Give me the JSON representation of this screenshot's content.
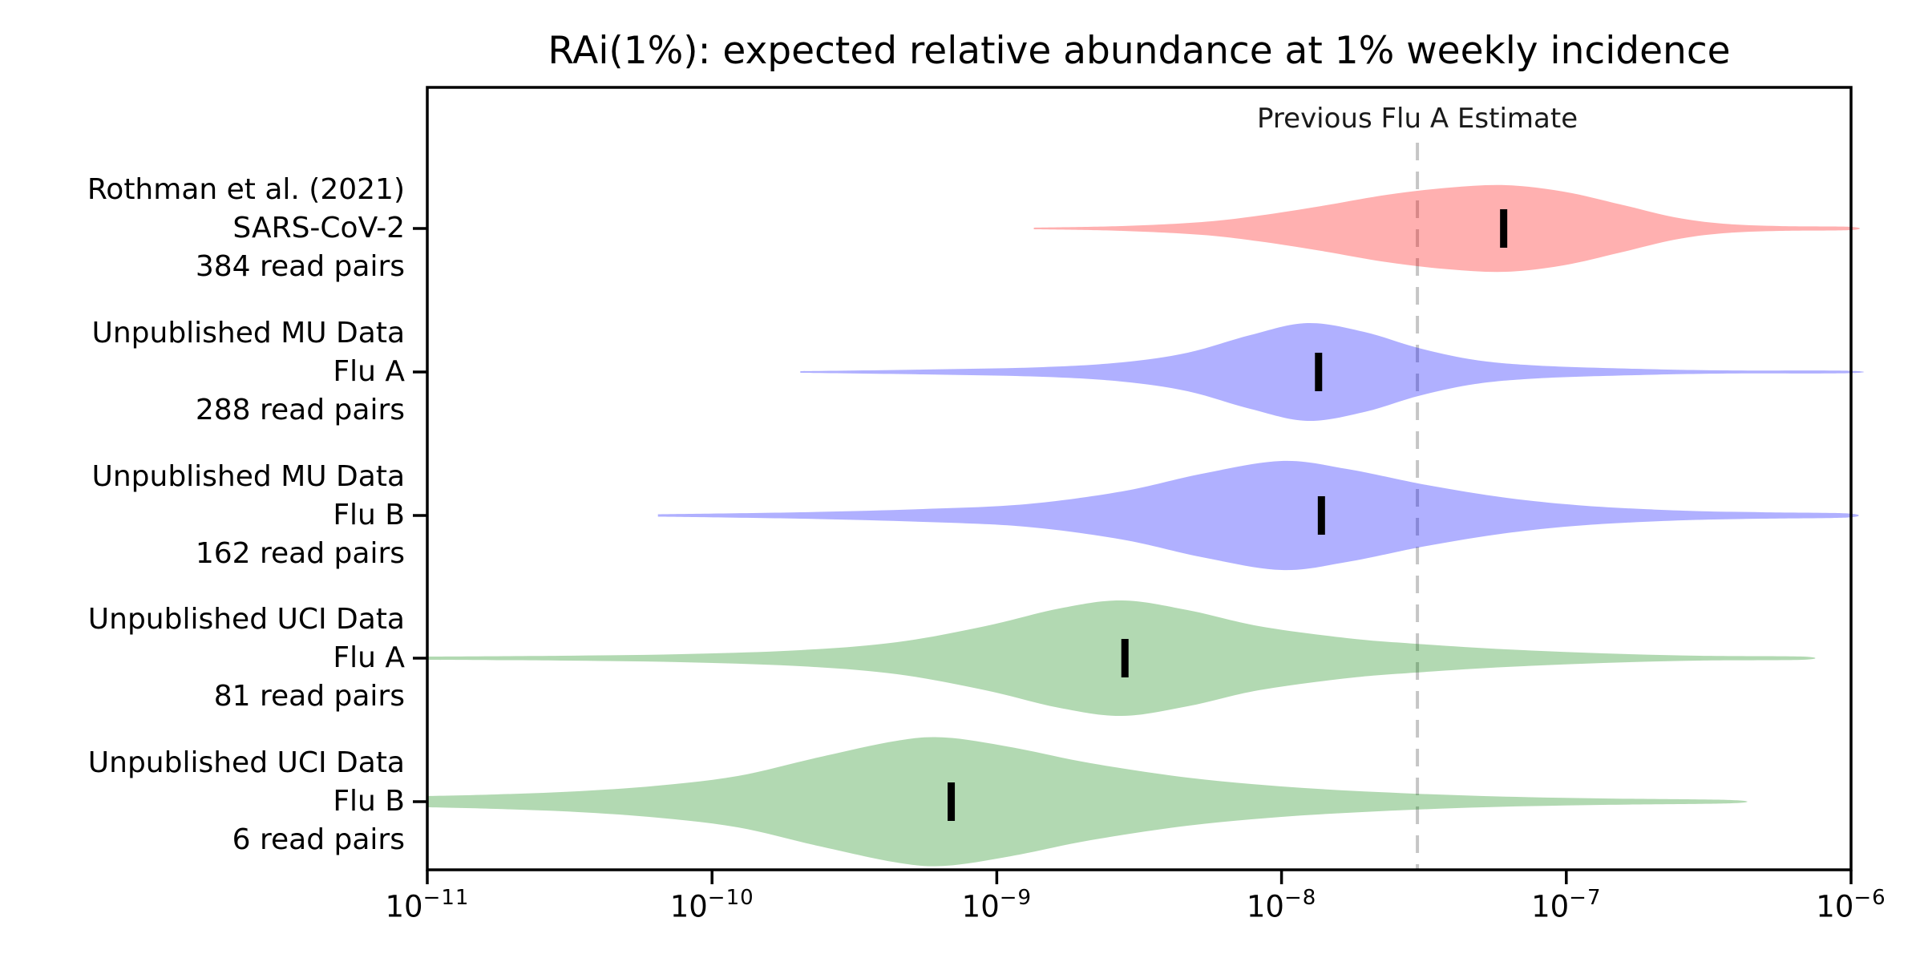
{
  "title": "RAi(1%): expected relative abundance at 1% weekly incidence",
  "annotation": {
    "label": "Previous Flu A Estimate"
  },
  "layout_colors": {
    "spine": "#000000",
    "reference_line": "#c6c6c6",
    "median_bar": "#000000",
    "background": "#ffffff"
  },
  "chart_data": {
    "type": "violin",
    "orientation": "horizontal",
    "x_scale": "log10",
    "x_axis": {
      "min_exponent": -11,
      "max_exponent": -6,
      "ticks": [
        {
          "exponent": -11,
          "base": "10",
          "sup": "−11"
        },
        {
          "exponent": -10,
          "base": "10",
          "sup": "−10"
        },
        {
          "exponent": -9,
          "base": "10",
          "sup": "−9"
        },
        {
          "exponent": -8,
          "base": "10",
          "sup": "−8"
        },
        {
          "exponent": -7,
          "base": "10",
          "sup": "−7"
        },
        {
          "exponent": -6,
          "base": "10",
          "sup": "−6"
        }
      ]
    },
    "reference_line": {
      "label": "Previous Flu A Estimate",
      "value": 3e-08,
      "exponent": -7.52,
      "style": "dashed",
      "color": "#c6c6c6"
    },
    "series": [
      {
        "label_lines": [
          "Rothman et al. (2021)",
          "SARS-CoV-2",
          "384 read pairs"
        ],
        "study": "Rothman et al. (2021)",
        "pathogen": "SARS-CoV-2",
        "read_pairs": 384,
        "fill": "rgba(255,0,0,0.31)",
        "solid_fill_hex": "#ffb0b0",
        "median_value": 6e-08,
        "median_exponent": -7.22,
        "density_profile": [
          [
            -8.87,
            1
          ],
          [
            -8.56,
            3
          ],
          [
            -8.28,
            8
          ],
          [
            -8.08,
            16
          ],
          [
            -7.86,
            28
          ],
          [
            -7.63,
            42
          ],
          [
            -7.41,
            51
          ],
          [
            -7.21,
            54
          ],
          [
            -7.01,
            46
          ],
          [
            -6.81,
            30
          ],
          [
            -6.62,
            14
          ],
          [
            -6.45,
            6
          ],
          [
            -6.25,
            3
          ],
          [
            -6.0,
            2
          ]
        ]
      },
      {
        "label_lines": [
          "Unpublished MU Data",
          "Flu A",
          "288 read pairs"
        ],
        "study": "Unpublished MU Data",
        "pathogen": "Flu A",
        "read_pairs": 288,
        "fill": "rgba(0,0,255,0.31)",
        "solid_fill_hex": "#b0b0ff",
        "median_value": 1.4e-08,
        "median_exponent": -7.87,
        "density_profile": [
          [
            -9.69,
            1
          ],
          [
            -9.26,
            3
          ],
          [
            -8.84,
            6
          ],
          [
            -8.56,
            12
          ],
          [
            -8.33,
            24
          ],
          [
            -8.11,
            46
          ],
          [
            -7.91,
            61
          ],
          [
            -7.71,
            50
          ],
          [
            -7.52,
            30
          ],
          [
            -7.32,
            15
          ],
          [
            -7.1,
            8
          ],
          [
            -6.76,
            4
          ],
          [
            -6.45,
            2
          ],
          [
            -6.01,
            1.5
          ]
        ]
      },
      {
        "label_lines": [
          "Unpublished MU Data",
          "Flu B",
          "162 read pairs"
        ],
        "study": "Unpublished MU Data",
        "pathogen": "Flu B",
        "read_pairs": 162,
        "fill": "rgba(0,0,255,0.31)",
        "solid_fill_hex": "#b0b0ff",
        "median_value": 1.4e-08,
        "median_exponent": -7.86,
        "density_profile": [
          [
            -10.19,
            1.5
          ],
          [
            -9.69,
            4
          ],
          [
            -9.26,
            8
          ],
          [
            -8.9,
            14
          ],
          [
            -8.56,
            30
          ],
          [
            -8.28,
            52
          ],
          [
            -8.0,
            68
          ],
          [
            -7.77,
            58
          ],
          [
            -7.49,
            38
          ],
          [
            -7.21,
            22
          ],
          [
            -6.93,
            12
          ],
          [
            -6.59,
            6
          ],
          [
            -6.31,
            4
          ],
          [
            -6.01,
            2.5
          ]
        ]
      },
      {
        "label_lines": [
          "Unpublished UCI Data",
          "Flu A",
          "81 read pairs"
        ],
        "study": "Unpublished UCI Data",
        "pathogen": "Flu A",
        "read_pairs": 81,
        "fill": "rgba(0,128,0,0.30)",
        "solid_fill_hex": "#b2d9b2",
        "median_value": 2.8e-09,
        "median_exponent": -8.55,
        "density_profile": [
          [
            -11.0,
            2
          ],
          [
            -10.53,
            3
          ],
          [
            -10.11,
            5
          ],
          [
            -9.69,
            10
          ],
          [
            -9.35,
            20
          ],
          [
            -9.04,
            40
          ],
          [
            -8.78,
            62
          ],
          [
            -8.56,
            72
          ],
          [
            -8.33,
            60
          ],
          [
            -8.08,
            40
          ],
          [
            -7.77,
            25
          ],
          [
            -7.53,
            18
          ],
          [
            -7.21,
            11
          ],
          [
            -6.87,
            6
          ],
          [
            -6.53,
            3
          ],
          [
            -6.17,
            2
          ]
        ]
      },
      {
        "label_lines": [
          "Unpublished UCI Data",
          "Flu B",
          "6 read pairs"
        ],
        "study": "Unpublished UCI Data",
        "pathogen": "Flu B",
        "read_pairs": 6,
        "fill": "rgba(0,128,0,0.30)",
        "solid_fill_hex": "#b2d9b2",
        "median_value": 6.9e-10,
        "median_exponent": -9.16,
        "density_profile": [
          [
            -11.0,
            7
          ],
          [
            -10.76,
            9
          ],
          [
            -10.47,
            13
          ],
          [
            -10.19,
            20
          ],
          [
            -9.91,
            32
          ],
          [
            -9.63,
            55
          ],
          [
            -9.35,
            76
          ],
          [
            -9.18,
            80
          ],
          [
            -8.95,
            68
          ],
          [
            -8.67,
            48
          ],
          [
            -8.33,
            30
          ],
          [
            -8.0,
            19
          ],
          [
            -7.66,
            12
          ],
          [
            -7.29,
            7
          ],
          [
            -6.87,
            4
          ],
          [
            -6.42,
            2
          ]
        ]
      }
    ]
  }
}
